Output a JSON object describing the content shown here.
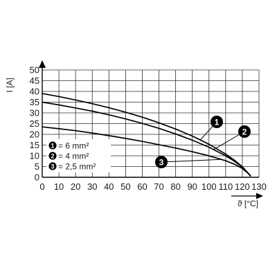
{
  "chart_data": {
    "type": "line",
    "xlabel": "ϑ [°C]",
    "ylabel": "I [A]",
    "xlim": [
      0,
      130
    ],
    "ylim": [
      0,
      50
    ],
    "x_ticks": [
      "0",
      "10",
      "20",
      "30",
      "40",
      "50",
      "60",
      "70",
      "80",
      "90",
      "100",
      "110",
      "120",
      "130"
    ],
    "y_ticks": [
      "0",
      "5",
      "10",
      "15",
      "20",
      "25",
      "30",
      "35",
      "40",
      "45",
      "50"
    ],
    "grid": true,
    "legend_position": "bottom-left",
    "legend": [
      {
        "marker": "1",
        "text": "= 6 mm²"
      },
      {
        "marker": "2",
        "text": "= 4 mm²"
      },
      {
        "marker": "3",
        "text": "= 2,5 mm²"
      }
    ],
    "series": [
      {
        "marker": "1",
        "x": [
          0,
          10,
          20,
          30,
          40,
          50,
          60,
          70,
          80,
          90,
          100,
          110,
          115,
          120,
          123,
          125
        ],
        "y": [
          39.0,
          37.6,
          36.0,
          34.3,
          32.4,
          30.3,
          28.0,
          25.4,
          22.5,
          19.2,
          15.4,
          10.8,
          8.1,
          4.9,
          2.4,
          0.5
        ]
      },
      {
        "marker": "2",
        "x": [
          0,
          10,
          20,
          30,
          40,
          50,
          60,
          70,
          80,
          90,
          100,
          110,
          115,
          120,
          123,
          125
        ],
        "y": [
          35.0,
          33.7,
          32.3,
          30.8,
          29.1,
          27.2,
          25.1,
          22.8,
          20.2,
          17.3,
          14.0,
          10.0,
          7.6,
          4.7,
          2.3,
          0.5
        ]
      },
      {
        "marker": "3",
        "x": [
          0,
          10,
          20,
          30,
          40,
          50,
          60,
          70,
          80,
          90,
          100,
          110,
          115,
          120,
          123,
          125
        ],
        "y": [
          23.5,
          22.6,
          21.7,
          20.6,
          19.4,
          18.1,
          16.7,
          15.2,
          13.6,
          11.9,
          10.0,
          7.7,
          6.2,
          4.1,
          2.2,
          0.5
        ]
      }
    ],
    "callouts": [
      {
        "marker": "1",
        "point": [
          95,
          17.6
        ]
      },
      {
        "marker": "2",
        "point": [
          103,
          13.0
        ]
      },
      {
        "marker": "3",
        "point": [
          107,
          8.3
        ]
      }
    ]
  }
}
